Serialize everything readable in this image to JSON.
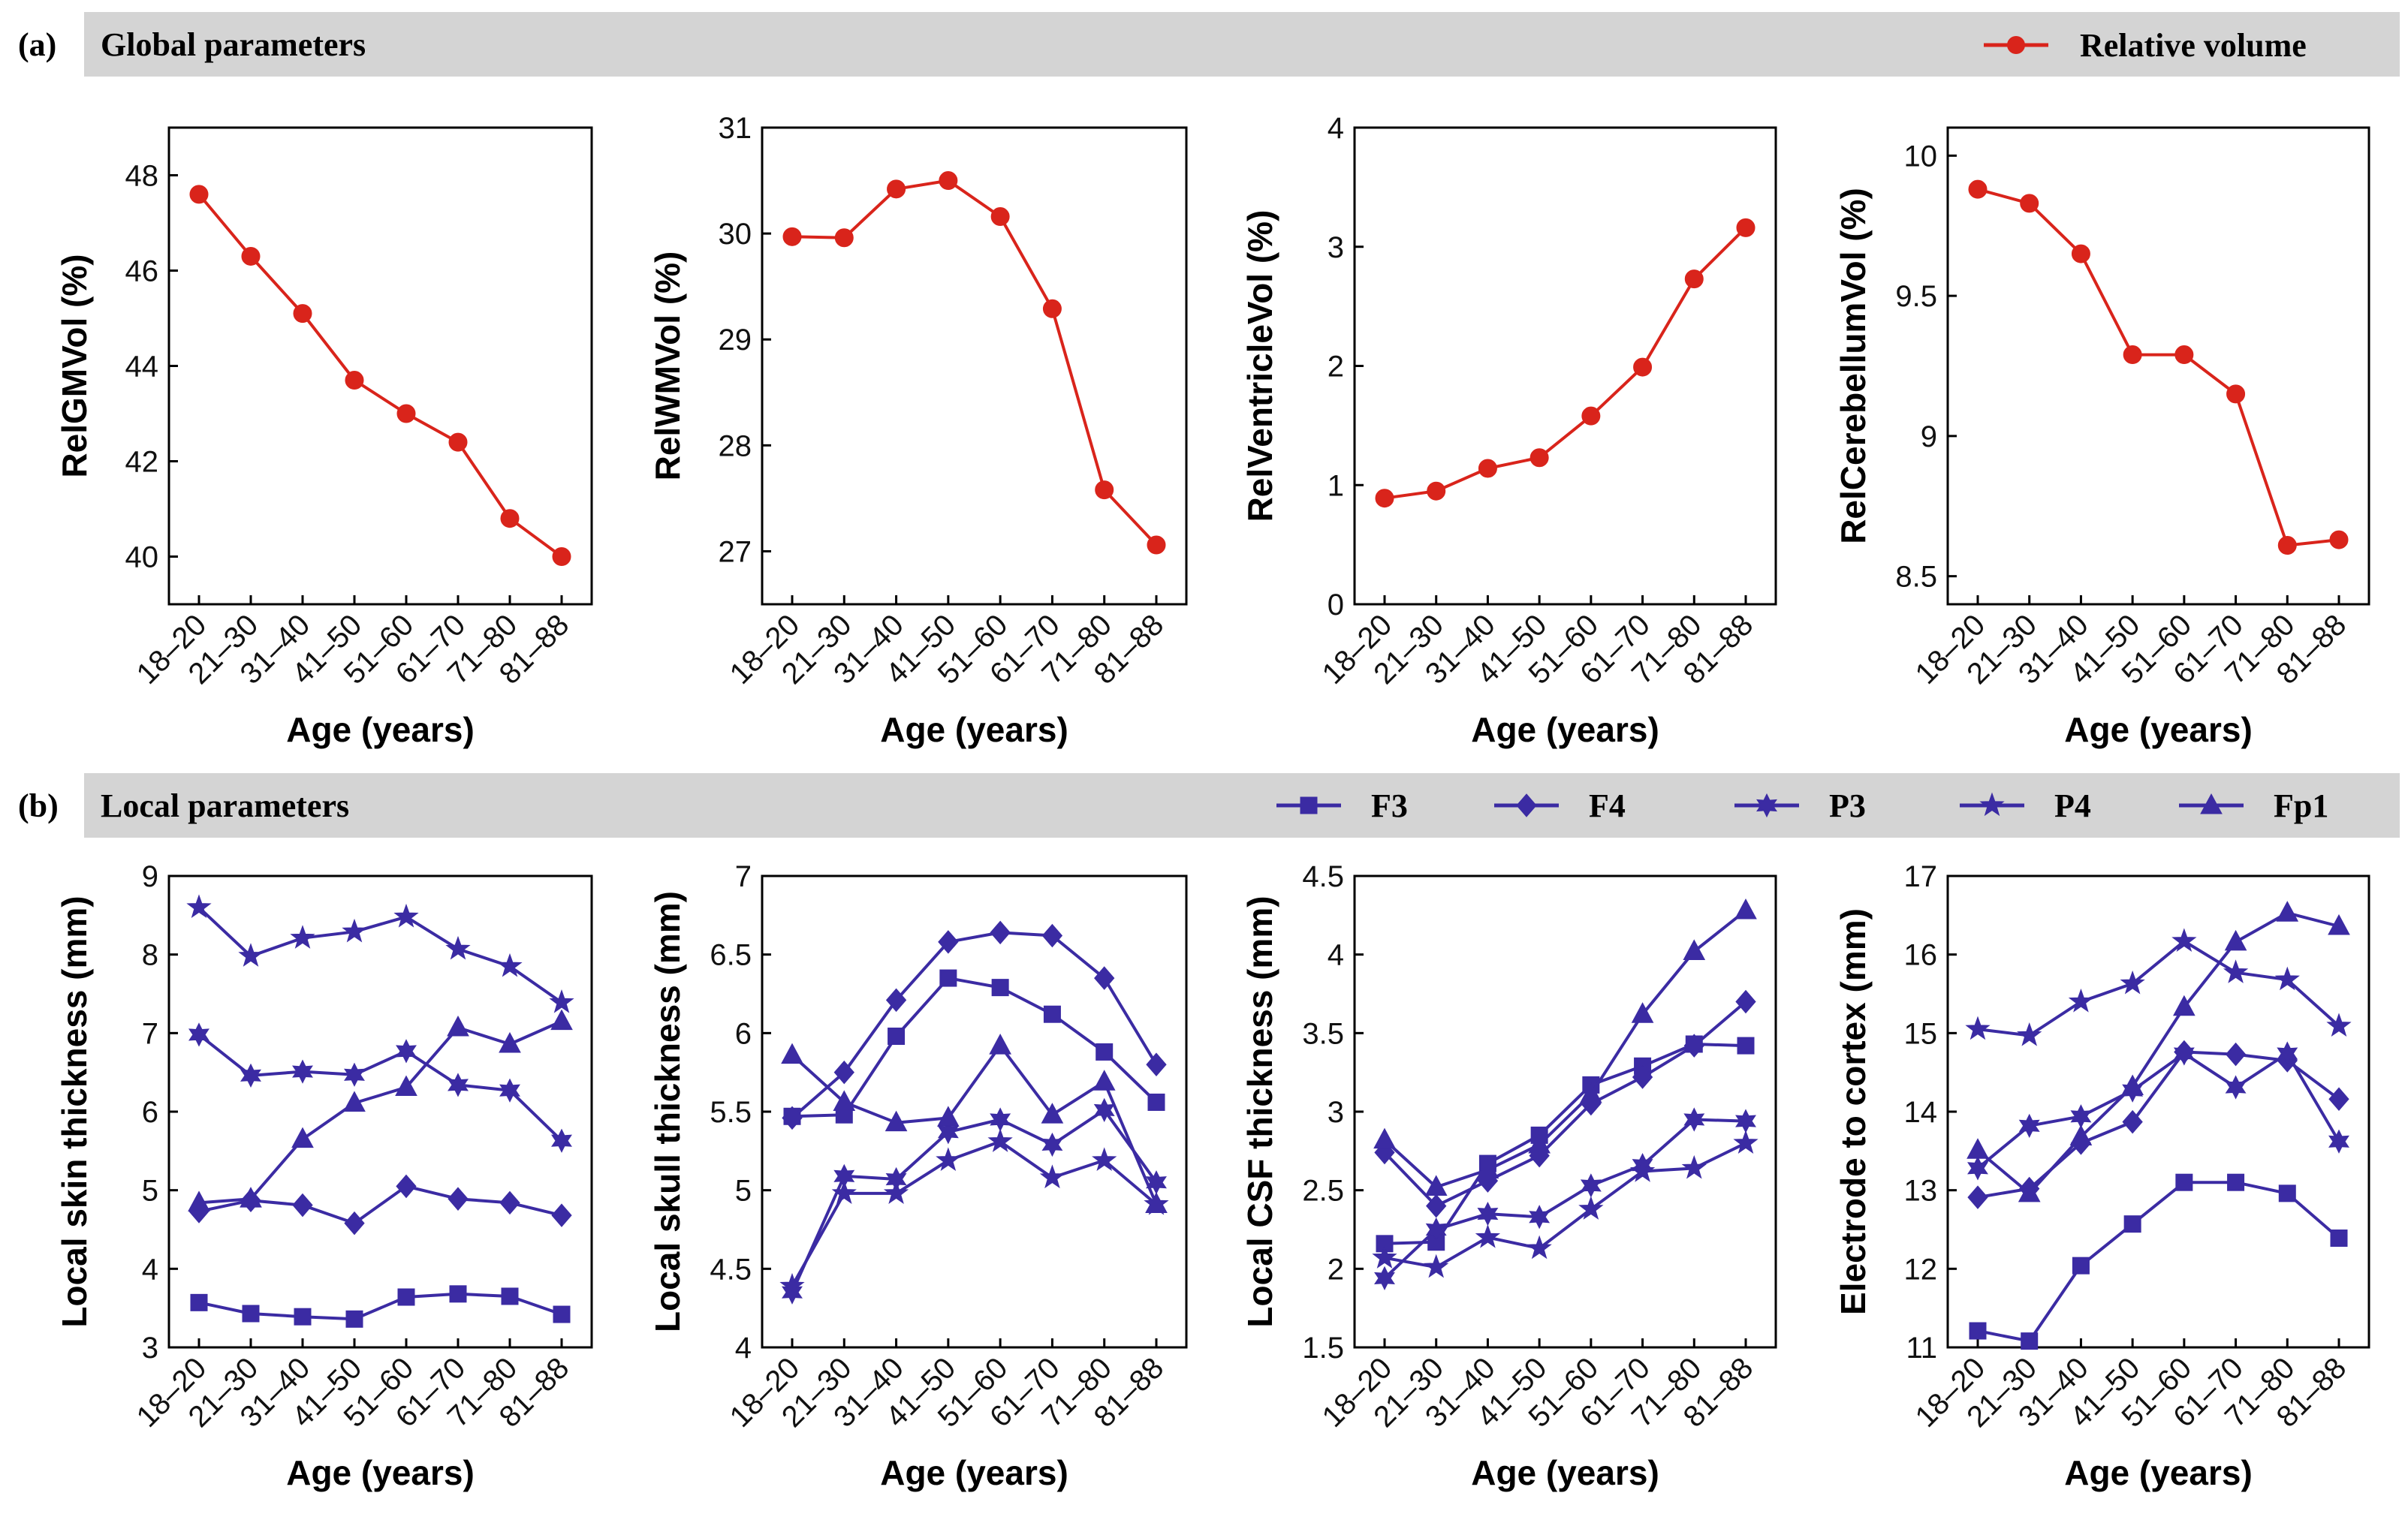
{
  "sections": {
    "a": {
      "letter": "(a)",
      "title": "Global parameters"
    },
    "b": {
      "letter": "(b)",
      "title": "Local parameters"
    }
  },
  "legends": {
    "global": [
      {
        "label": "Relative volume",
        "color": "#d9241b",
        "marker": "circle"
      }
    ],
    "local": [
      {
        "label": "F3",
        "marker": "square"
      },
      {
        "label": "F4",
        "marker": "diamond"
      },
      {
        "label": "P3",
        "marker": "hexagram"
      },
      {
        "label": "P4",
        "marker": "star"
      },
      {
        "label": "Fp1",
        "marker": "triangle"
      }
    ]
  },
  "colors": {
    "global": "#d9241b",
    "local": "#3b2ba3",
    "band": "#d4d4d4"
  },
  "chart_data": [
    {
      "type": "line",
      "row": "a",
      "categories": [
        "18–20",
        "21–30",
        "31–40",
        "41–50",
        "51–60",
        "61–70",
        "71–80",
        "81–88"
      ],
      "xlabel": "Age (years)",
      "ylabel": "RelGMVol (%)",
      "ylim": [
        39,
        49
      ],
      "yticks": [
        "40",
        "42",
        "44",
        "46",
        "48"
      ],
      "series": [
        {
          "name": "Relative volume",
          "marker": "circle",
          "values": [
            47.6,
            46.3,
            45.1,
            43.7,
            43.0,
            42.4,
            40.8,
            40.0
          ]
        }
      ]
    },
    {
      "type": "line",
      "row": "a",
      "categories": [
        "18–20",
        "21–30",
        "31–40",
        "41–50",
        "51–60",
        "61–70",
        "71–80",
        "81–88"
      ],
      "xlabel": "Age (years)",
      "ylabel": "RelWMVol (%)",
      "ylim": [
        26.5,
        31
      ],
      "yticks": [
        "27",
        "28",
        "29",
        "30",
        "31"
      ],
      "series": [
        {
          "name": "Relative volume",
          "marker": "circle",
          "values": [
            29.97,
            29.96,
            30.42,
            30.5,
            30.16,
            29.29,
            27.58,
            27.06
          ]
        }
      ]
    },
    {
      "type": "line",
      "row": "a",
      "categories": [
        "18–20",
        "21–30",
        "31–40",
        "41–50",
        "51–60",
        "61–70",
        "71–80",
        "81–88"
      ],
      "xlabel": "Age (years)",
      "ylabel": "RelVentricleVol (%)",
      "ylim": [
        0,
        4
      ],
      "yticks": [
        "0",
        "1",
        "2",
        "3",
        "4"
      ],
      "series": [
        {
          "name": "Relative volume",
          "marker": "circle",
          "values": [
            0.89,
            0.95,
            1.14,
            1.23,
            1.58,
            1.99,
            2.73,
            3.16
          ]
        }
      ]
    },
    {
      "type": "line",
      "row": "a",
      "categories": [
        "18–20",
        "21–30",
        "31–40",
        "41–50",
        "51–60",
        "61–70",
        "71–80",
        "81–88"
      ],
      "xlabel": "Age (years)",
      "ylabel": "RelCerebellumVol (%)",
      "ylim": [
        8.4,
        10.1
      ],
      "yticks": [
        "8.5",
        "9",
        "9.5",
        "10"
      ],
      "series": [
        {
          "name": "Relative volume",
          "marker": "circle",
          "values": [
            9.88,
            9.83,
            9.65,
            9.29,
            9.29,
            9.15,
            8.61,
            8.63
          ]
        }
      ]
    },
    {
      "type": "line",
      "row": "b",
      "categories": [
        "18–20",
        "21–30",
        "31–40",
        "41–50",
        "51–60",
        "61–70",
        "71–80",
        "81–88"
      ],
      "xlabel": "Age (years)",
      "ylabel": "Local skin thickness (mm)",
      "ylim": [
        3,
        9
      ],
      "yticks": [
        "3",
        "4",
        "5",
        "6",
        "7",
        "8",
        "9"
      ],
      "series": [
        {
          "name": "F3",
          "marker": "square",
          "values": [
            3.57,
            3.43,
            3.39,
            3.36,
            3.64,
            3.68,
            3.65,
            3.42
          ]
        },
        {
          "name": "F4",
          "marker": "diamond",
          "values": [
            4.73,
            4.87,
            4.81,
            4.58,
            5.05,
            4.89,
            4.84,
            4.68
          ]
        },
        {
          "name": "P3",
          "marker": "hexagram",
          "values": [
            6.98,
            6.46,
            6.51,
            6.47,
            6.77,
            6.34,
            6.27,
            5.63
          ]
        },
        {
          "name": "P4",
          "marker": "star",
          "values": [
            8.6,
            7.98,
            8.21,
            8.29,
            8.48,
            8.07,
            7.85,
            7.39
          ]
        },
        {
          "name": "Fp1",
          "marker": "triangle",
          "values": [
            4.84,
            4.89,
            5.65,
            6.11,
            6.31,
            7.07,
            6.86,
            7.15
          ]
        }
      ]
    },
    {
      "type": "line",
      "row": "b",
      "categories": [
        "18–20",
        "21–30",
        "31–40",
        "41–50",
        "51–60",
        "61–70",
        "71–80",
        "81–88"
      ],
      "xlabel": "Age (years)",
      "ylabel": "Local skull thickness (mm)",
      "ylim": [
        4,
        7
      ],
      "yticks": [
        "4",
        "4.5",
        "5",
        "5.5",
        "6",
        "6.5",
        "7"
      ],
      "series": [
        {
          "name": "F3",
          "marker": "square",
          "values": [
            5.47,
            5.48,
            5.98,
            6.35,
            6.29,
            6.12,
            5.88,
            5.56
          ]
        },
        {
          "name": "F4",
          "marker": "diamond",
          "values": [
            5.46,
            5.75,
            6.21,
            6.58,
            6.64,
            6.62,
            6.35,
            5.8
          ]
        },
        {
          "name": "P3",
          "marker": "hexagram",
          "values": [
            4.35,
            5.09,
            5.07,
            5.37,
            5.45,
            5.29,
            5.51,
            5.05
          ]
        },
        {
          "name": "P4",
          "marker": "star",
          "values": [
            4.39,
            4.98,
            4.98,
            5.19,
            5.31,
            5.08,
            5.19,
            4.91
          ]
        },
        {
          "name": "Fp1",
          "marker": "triangle",
          "values": [
            5.86,
            5.56,
            5.43,
            5.46,
            5.92,
            5.48,
            5.69,
            4.91
          ]
        }
      ]
    },
    {
      "type": "line",
      "row": "b",
      "categories": [
        "18–20",
        "21–30",
        "31–40",
        "41–50",
        "51–60",
        "61–70",
        "71–80",
        "81–88"
      ],
      "xlabel": "Age (years)",
      "ylabel": "Local CSF thickness (mm)",
      "ylim": [
        1.5,
        4.5
      ],
      "yticks": [
        "1.5",
        "2",
        "2.5",
        "3",
        "3.5",
        "4",
        "4.5"
      ],
      "series": [
        {
          "name": "F3",
          "marker": "square",
          "values": [
            2.16,
            2.17,
            2.67,
            2.85,
            3.17,
            3.29,
            3.43,
            3.42
          ]
        },
        {
          "name": "F4",
          "marker": "diamond",
          "values": [
            2.74,
            2.4,
            2.56,
            2.72,
            3.05,
            3.22,
            3.42,
            3.7
          ]
        },
        {
          "name": "P3",
          "marker": "hexagram",
          "values": [
            1.94,
            2.25,
            2.35,
            2.33,
            2.53,
            2.66,
            2.95,
            2.94
          ]
        },
        {
          "name": "P4",
          "marker": "star",
          "values": [
            2.07,
            2.01,
            2.2,
            2.13,
            2.38,
            2.62,
            2.64,
            2.8
          ]
        },
        {
          "name": "Fp1",
          "marker": "triangle",
          "values": [
            2.82,
            2.52,
            2.63,
            2.79,
            3.11,
            3.62,
            4.02,
            4.28
          ]
        }
      ]
    },
    {
      "type": "line",
      "row": "b",
      "categories": [
        "18–20",
        "21–30",
        "31–40",
        "41–50",
        "51–60",
        "61–70",
        "71–80",
        "81–88"
      ],
      "xlabel": "Age (years)",
      "ylabel": "Electrode to cortex (mm)",
      "ylim": [
        11,
        17
      ],
      "yticks": [
        "11",
        "12",
        "13",
        "14",
        "15",
        "16",
        "17"
      ],
      "series": [
        {
          "name": "F3",
          "marker": "square",
          "values": [
            11.21,
            11.08,
            12.04,
            12.57,
            13.1,
            13.1,
            12.96,
            12.39
          ]
        },
        {
          "name": "F4",
          "marker": "diamond",
          "values": [
            12.91,
            13.02,
            13.6,
            13.87,
            14.76,
            14.73,
            14.65,
            14.16
          ]
        },
        {
          "name": "P3",
          "marker": "hexagram",
          "values": [
            13.28,
            13.82,
            13.94,
            14.27,
            14.74,
            14.31,
            14.74,
            13.62
          ]
        },
        {
          "name": "P4",
          "marker": "star",
          "values": [
            15.05,
            14.97,
            15.4,
            15.63,
            16.17,
            15.77,
            15.68,
            15.09
          ]
        },
        {
          "name": "Fp1",
          "marker": "triangle",
          "values": [
            13.51,
            12.96,
            13.68,
            14.32,
            15.33,
            16.16,
            16.53,
            16.36
          ]
        }
      ]
    }
  ]
}
